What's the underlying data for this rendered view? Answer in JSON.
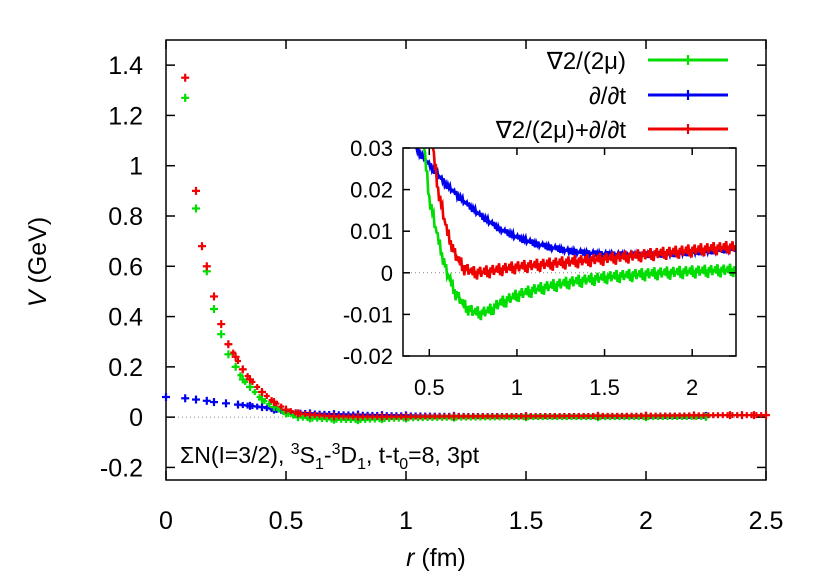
{
  "chart_data": [
    {
      "id": "main",
      "type": "scatter",
      "xlabel": "r (fm)",
      "xlabel_var": "r",
      "xlabel_unit": "(fm)",
      "ylabel": "V (GeV)",
      "ylabel_var": "V",
      "ylabel_unit": "(GeV)",
      "xlim": [
        0,
        2.5
      ],
      "ylim": [
        -0.25,
        1.5
      ],
      "xticks": [
        "0",
        "0.5",
        "1",
        "1.5",
        "2",
        "2.5"
      ],
      "yticks": [
        "-0.2",
        "0",
        "0.2",
        "0.4",
        "0.6",
        "0.8",
        "1",
        "1.2",
        "1.4"
      ],
      "zero_line": true,
      "annotation": "ΣN(I=3/2), 3S1-3D1, t-t0=8, 3pt",
      "annotation_parts": {
        "a": "ΣN(I=3/2), ",
        "b_sup": "3",
        "c": "S",
        "d_sub": "1",
        "e": "-",
        "f_sup": "3",
        "g": "D",
        "h_sub": "1",
        "i": ", t-t",
        "j_sub": "0",
        "k": "=8, 3pt"
      },
      "legend_position": "top-right",
      "series": [
        {
          "name": "∇2/(2μ)",
          "color": "#00dd00",
          "points": [
            [
              0.08,
              1.27
            ],
            [
              0.125,
              0.83
            ],
            [
              0.17,
              0.58
            ],
            [
              0.2,
              0.43
            ],
            [
              0.23,
              0.33
            ],
            [
              0.26,
              0.25
            ],
            [
              0.29,
              0.2
            ],
            [
              0.32,
              0.15
            ],
            [
              0.35,
              0.12
            ],
            [
              0.4,
              0.07
            ],
            [
              0.45,
              0.04
            ],
            [
              0.5,
              0.015
            ],
            [
              0.55,
              0.0
            ],
            [
              0.6,
              -0.005
            ],
            [
              0.7,
              -0.01
            ],
            [
              0.8,
              -0.012
            ],
            [
              0.9,
              -0.008
            ],
            [
              1.0,
              -0.005
            ],
            [
              1.2,
              -0.002
            ],
            [
              1.5,
              0.0
            ],
            [
              1.8,
              0.0
            ],
            [
              2.0,
              0.0
            ],
            [
              2.25,
              0.001
            ]
          ]
        },
        {
          "name": "∂/∂t",
          "color": "#0000ee",
          "points": [
            [
              0.0,
              0.08
            ],
            [
              0.08,
              0.075
            ],
            [
              0.125,
              0.07
            ],
            [
              0.17,
              0.065
            ],
            [
              0.2,
              0.06
            ],
            [
              0.25,
              0.055
            ],
            [
              0.3,
              0.05
            ],
            [
              0.35,
              0.045
            ],
            [
              0.4,
              0.04
            ],
            [
              0.45,
              0.03
            ],
            [
              0.5,
              0.022
            ],
            [
              0.6,
              0.015
            ],
            [
              0.7,
              0.012
            ],
            [
              0.8,
              0.01
            ],
            [
              0.9,
              0.008
            ],
            [
              1.0,
              0.007
            ],
            [
              1.2,
              0.005
            ],
            [
              1.5,
              0.004
            ],
            [
              1.8,
              0.004
            ],
            [
              2.0,
              0.004
            ],
            [
              2.25,
              0.005
            ]
          ]
        },
        {
          "name": "∇2/(2μ)+∂/∂t",
          "color": "#ee0000",
          "points": [
            [
              0.08,
              1.35
            ],
            [
              0.125,
              0.9
            ],
            [
              0.15,
              0.68
            ],
            [
              0.17,
              0.6
            ],
            [
              0.2,
              0.48
            ],
            [
              0.23,
              0.37
            ],
            [
              0.26,
              0.29
            ],
            [
              0.29,
              0.24
            ],
            [
              0.32,
              0.19
            ],
            [
              0.35,
              0.15
            ],
            [
              0.4,
              0.1
            ],
            [
              0.45,
              0.06
            ],
            [
              0.5,
              0.03
            ],
            [
              0.55,
              0.015
            ],
            [
              0.6,
              0.01
            ],
            [
              0.7,
              0.003
            ],
            [
              0.8,
              0.002
            ],
            [
              0.9,
              0.002
            ],
            [
              1.0,
              0.002
            ],
            [
              1.2,
              0.003
            ],
            [
              1.5,
              0.004
            ],
            [
              1.8,
              0.005
            ],
            [
              2.0,
              0.006
            ],
            [
              2.2,
              0.007
            ],
            [
              2.35,
              0.008
            ],
            [
              2.4,
              0.008
            ],
            [
              2.45,
              0.008
            ],
            [
              2.5,
              0.008
            ]
          ]
        }
      ]
    },
    {
      "id": "inset",
      "type": "line",
      "xlim": [
        0.35,
        2.25
      ],
      "ylim": [
        -0.02,
        0.03
      ],
      "xticks": [
        "0.5",
        "1",
        "1.5",
        "2"
      ],
      "yticks": [
        "-0.02",
        "-0.01",
        "0",
        "0.01",
        "0.02",
        "0.03"
      ],
      "zero_line": true,
      "series": [
        {
          "name": "∇2/(2μ)",
          "color": "#00dd00",
          "points": [
            [
              0.47,
              0.03
            ],
            [
              0.5,
              0.018
            ],
            [
              0.55,
              0.008
            ],
            [
              0.6,
              0.0
            ],
            [
              0.65,
              -0.005
            ],
            [
              0.7,
              -0.008
            ],
            [
              0.75,
              -0.0095
            ],
            [
              0.8,
              -0.0098
            ],
            [
              0.85,
              -0.009
            ],
            [
              0.9,
              -0.0075
            ],
            [
              1.0,
              -0.0055
            ],
            [
              1.1,
              -0.0042
            ],
            [
              1.2,
              -0.0032
            ],
            [
              1.3,
              -0.0024
            ],
            [
              1.4,
              -0.0018
            ],
            [
              1.5,
              -0.0012
            ],
            [
              1.6,
              -0.0008
            ],
            [
              1.7,
              -0.0005
            ],
            [
              1.8,
              -0.0002
            ],
            [
              1.9,
              0.0
            ],
            [
              2.0,
              0.0002
            ],
            [
              2.1,
              0.0004
            ],
            [
              2.25,
              0.0006
            ]
          ]
        },
        {
          "name": "∂/∂t",
          "color": "#0000ee",
          "points": [
            [
              0.42,
              0.03
            ],
            [
              0.5,
              0.026
            ],
            [
              0.6,
              0.021
            ],
            [
              0.7,
              0.017
            ],
            [
              0.8,
              0.0135
            ],
            [
              0.9,
              0.0105
            ],
            [
              1.0,
              0.0085
            ],
            [
              1.1,
              0.007
            ],
            [
              1.2,
              0.006
            ],
            [
              1.3,
              0.0052
            ],
            [
              1.4,
              0.0047
            ],
            [
              1.5,
              0.0044
            ],
            [
              1.6,
              0.0043
            ],
            [
              1.7,
              0.0043
            ],
            [
              1.8,
              0.0044
            ],
            [
              1.9,
              0.0046
            ],
            [
              2.0,
              0.0049
            ],
            [
              2.1,
              0.0052
            ],
            [
              2.25,
              0.0057
            ]
          ]
        },
        {
          "name": "∇2/(2μ)+∂/∂t",
          "color": "#ee0000",
          "points": [
            [
              0.52,
              0.03
            ],
            [
              0.55,
              0.02
            ],
            [
              0.6,
              0.01
            ],
            [
              0.65,
              0.004
            ],
            [
              0.7,
              0.001
            ],
            [
              0.75,
              0.0
            ],
            [
              0.8,
              0.0
            ],
            [
              0.9,
              0.0007
            ],
            [
              1.0,
              0.0013
            ],
            [
              1.1,
              0.0017
            ],
            [
              1.2,
              0.0021
            ],
            [
              1.3,
              0.0025
            ],
            [
              1.4,
              0.0029
            ],
            [
              1.5,
              0.0033
            ],
            [
              1.6,
              0.0037
            ],
            [
              1.7,
              0.0041
            ],
            [
              1.8,
              0.0045
            ],
            [
              1.9,
              0.0049
            ],
            [
              2.0,
              0.0053
            ],
            [
              2.1,
              0.0057
            ],
            [
              2.25,
              0.0062
            ]
          ]
        }
      ]
    }
  ]
}
